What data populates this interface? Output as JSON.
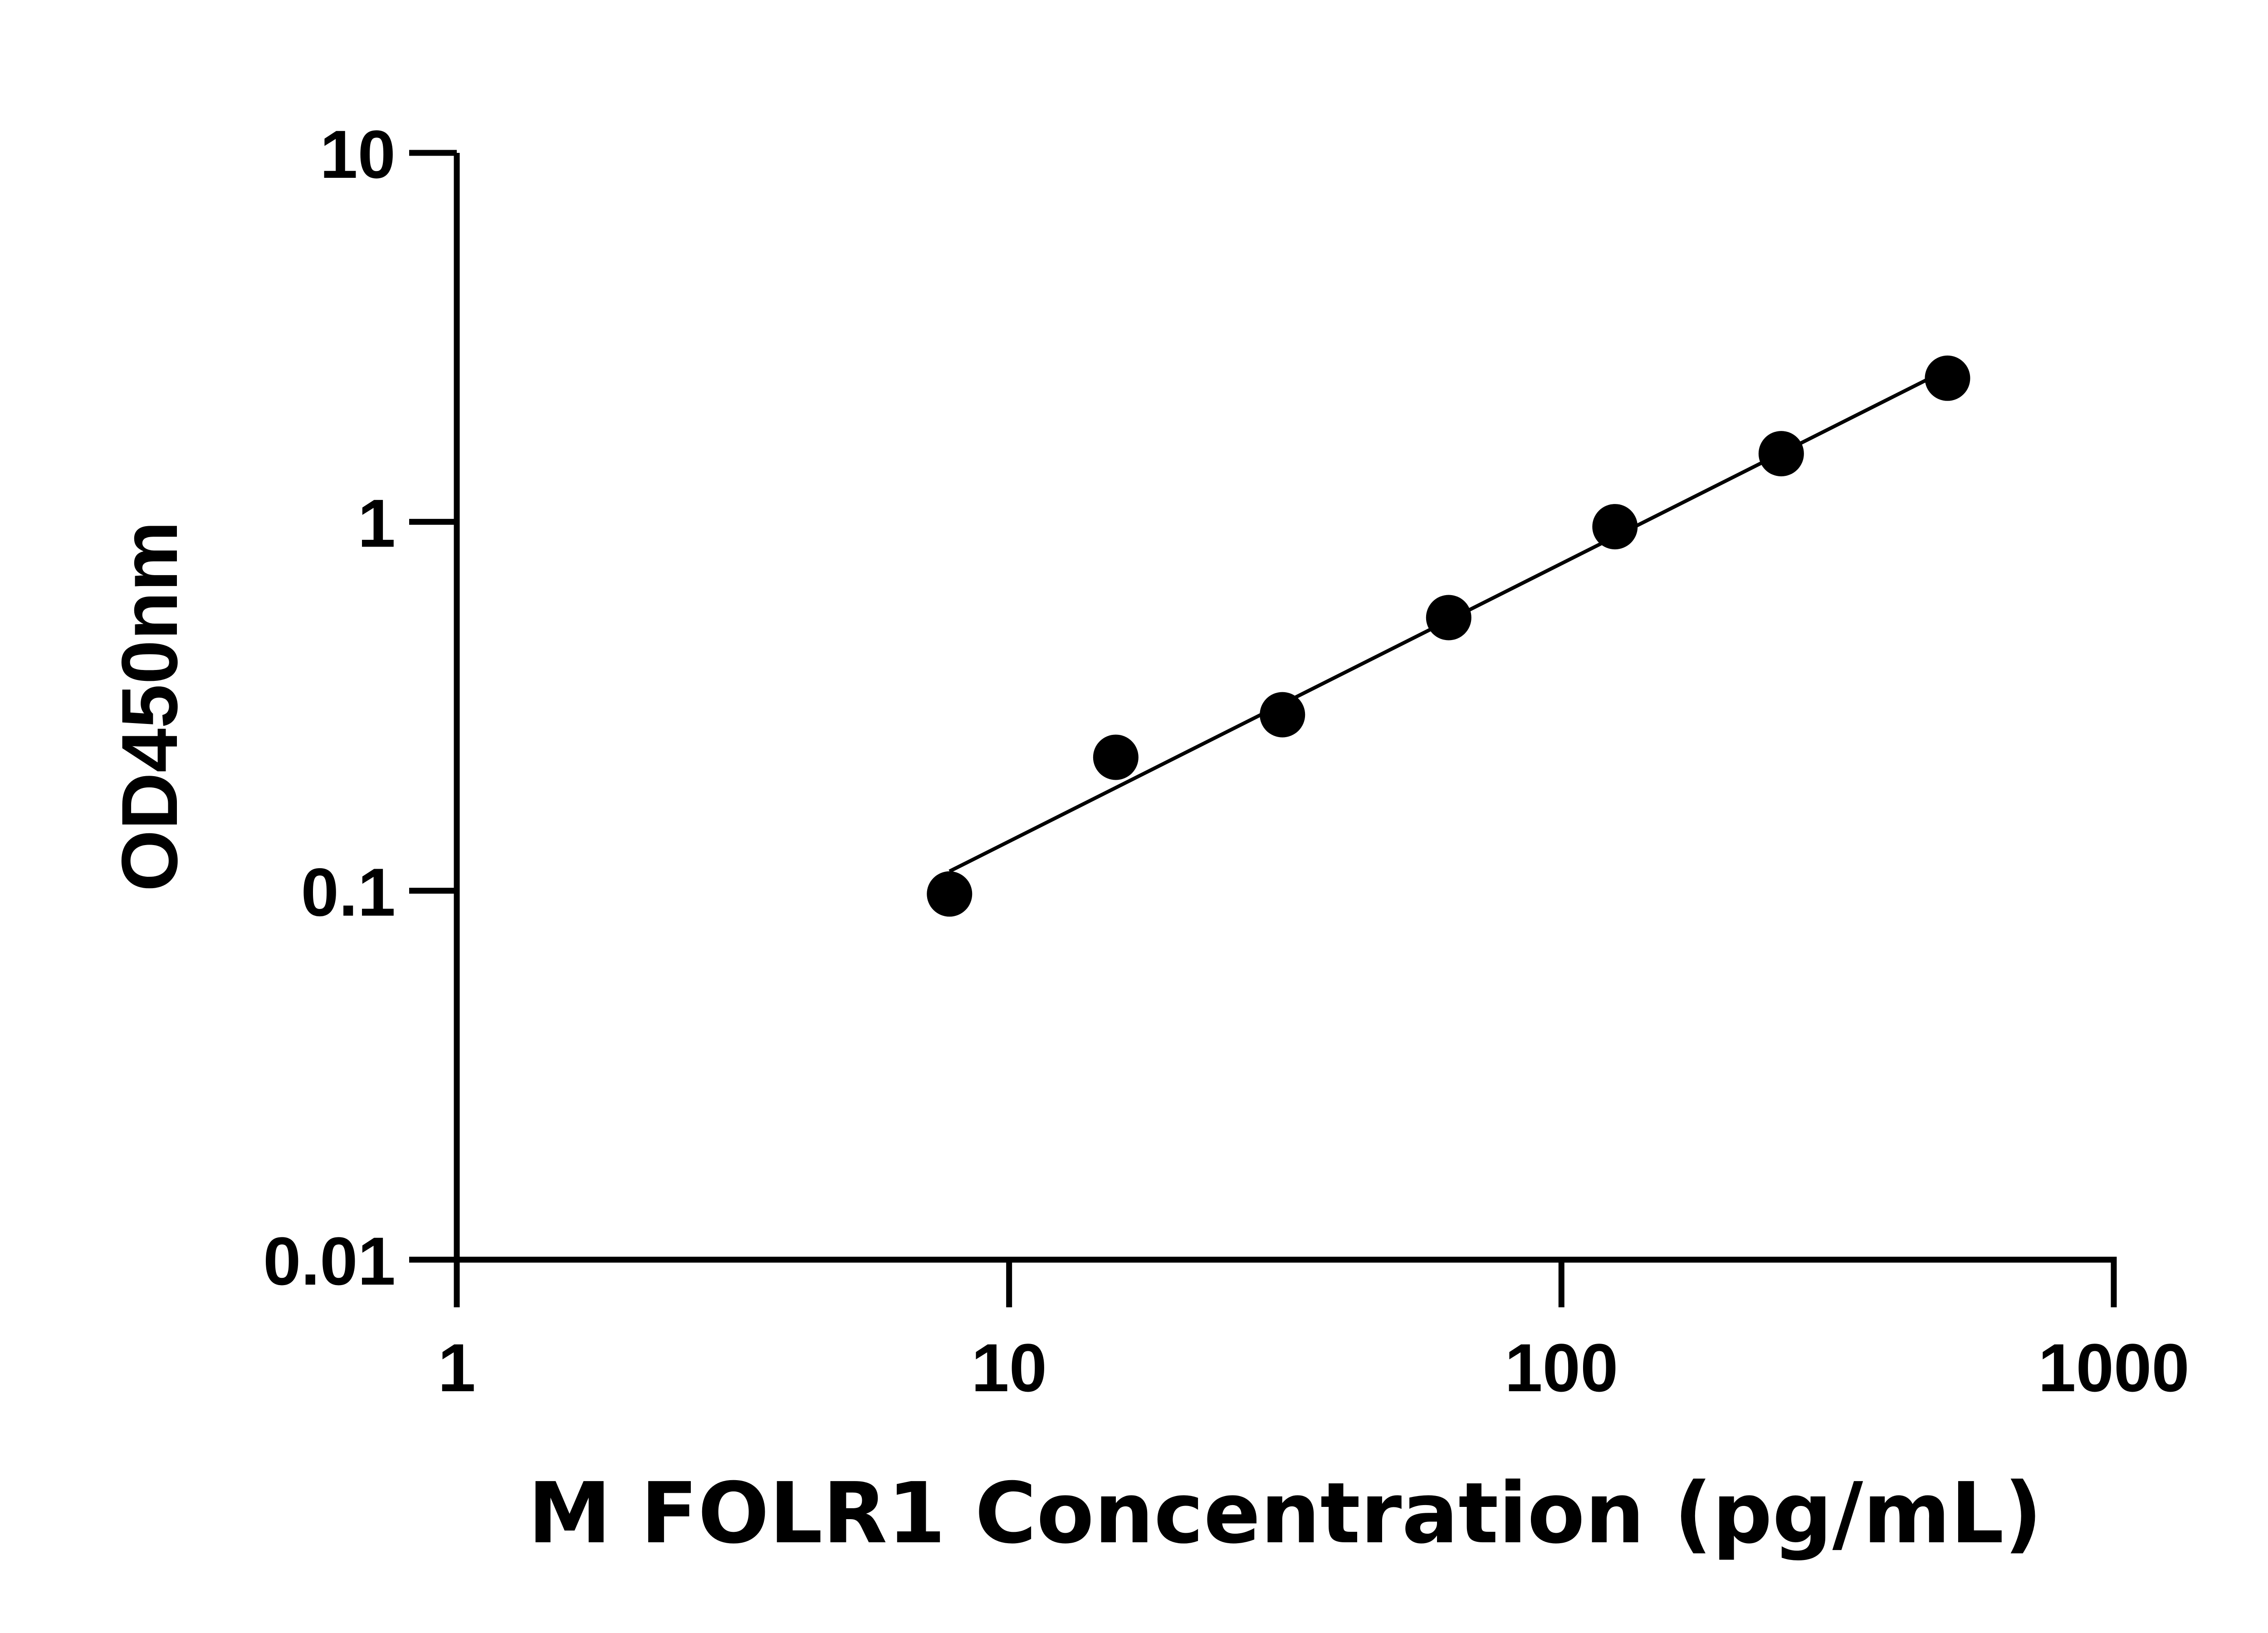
{
  "chart_data": {
    "type": "scatter",
    "title": "",
    "xlabel": "M FOLR1 Concentration (pg/mL)",
    "ylabel": "OD450nm",
    "xscale": "log",
    "yscale": "log",
    "xlim": [
      1,
      1000
    ],
    "ylim": [
      0.01,
      10
    ],
    "xticks": [
      "1",
      "10",
      "100",
      "1000"
    ],
    "yticks": [
      "0.01",
      "0.1",
      "1",
      "10"
    ],
    "grid": false,
    "fit_line": "linear on log-log",
    "x": [
      7.8,
      15.6,
      31.25,
      62.5,
      125,
      250,
      500
    ],
    "y": [
      0.098,
      0.23,
      0.3,
      0.55,
      0.97,
      1.53,
      2.45
    ],
    "color": "#000000"
  }
}
